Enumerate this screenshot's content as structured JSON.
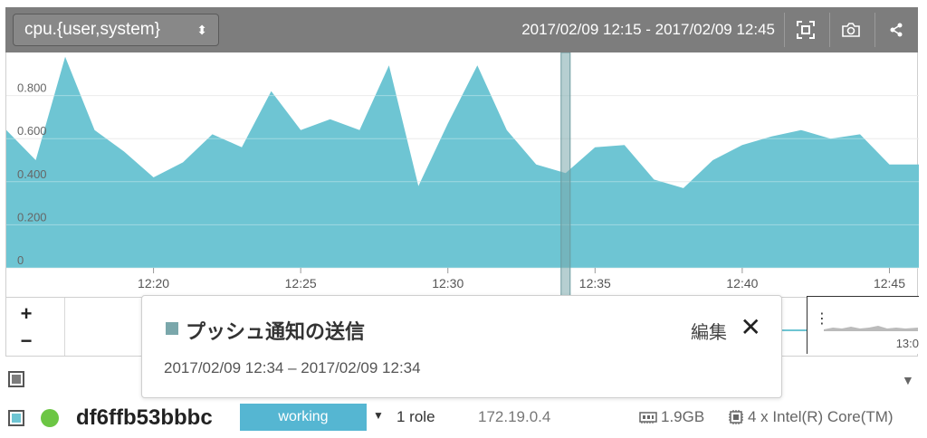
{
  "header": {
    "metric": "cpu.{user,system}",
    "select_arrows": "⬍",
    "time_range": "2017/02/09 12:15 - 2017/02/09 12:45",
    "buttons": [
      {
        "name": "fit-range-icon"
      },
      {
        "name": "camera-icon"
      },
      {
        "name": "share-icon"
      }
    ]
  },
  "chart_data": {
    "type": "area",
    "title": "",
    "xlabel": "",
    "ylabel": "",
    "ylim": [
      0,
      1.0
    ],
    "xlim": [
      "12:15:00",
      "12:46:00"
    ],
    "y_ticks": [
      "0",
      "0.200",
      "0.400",
      "0.600",
      "0.800"
    ],
    "x_ticks": [
      "12:20",
      "12:25",
      "12:30",
      "12:35",
      "12:40",
      "12:45"
    ],
    "grid": true,
    "legend": "none",
    "color": "#6ec5d3",
    "marker_time": "12:34",
    "series": [
      {
        "x": [
          "12:15:00",
          "12:16:00",
          "12:17:00",
          "12:18:00",
          "12:19:00",
          "12:20:00",
          "12:21:00",
          "12:22:00",
          "12:23:00",
          "12:24:00",
          "12:25:00",
          "12:26:00",
          "12:27:00",
          "12:28:00",
          "12:29:00",
          "12:30:00",
          "12:31:00",
          "12:32:00",
          "12:33:00",
          "12:34:00",
          "12:35:00",
          "12:36:00",
          "12:37:00",
          "12:38:00",
          "12:39:00",
          "12:40:00",
          "12:41:00",
          "12:42:00",
          "12:43:00",
          "12:44:00",
          "12:45:00",
          "12:46:00"
        ],
        "values": [
          0.64,
          0.5,
          0.98,
          0.64,
          0.54,
          0.42,
          0.49,
          0.62,
          0.56,
          0.82,
          0.64,
          0.69,
          0.64,
          0.94,
          0.38,
          0.67,
          0.94,
          0.64,
          0.48,
          0.44,
          0.56,
          0.57,
          0.41,
          0.37,
          0.5,
          0.57,
          0.61,
          0.64,
          0.6,
          0.62,
          0.48,
          0.48
        ]
      }
    ]
  },
  "navigator": {
    "zoom_in": "+",
    "zoom_out": "−",
    "grip": "⋮",
    "window_time": "13:0"
  },
  "popup": {
    "title": "プッシュ通知の送信",
    "edit_label": "編集",
    "close_label": "✕",
    "swatch_color": "#7aa7ab",
    "range": "2017/02/09 12:34 – 2017/02/09 12:34"
  },
  "group_row": {
    "collapse": "▼",
    "checkbox_color": "#7d7d7d"
  },
  "host": {
    "checkbox_color": "#6ec5d3",
    "name": "df6ffb53bbbc",
    "status": "working",
    "status_caret": "▼",
    "roles": "1 role",
    "ip": "172.19.0.4",
    "memory": "1.9GB",
    "cpu": "4 x Intel(R) Core(TM)"
  }
}
